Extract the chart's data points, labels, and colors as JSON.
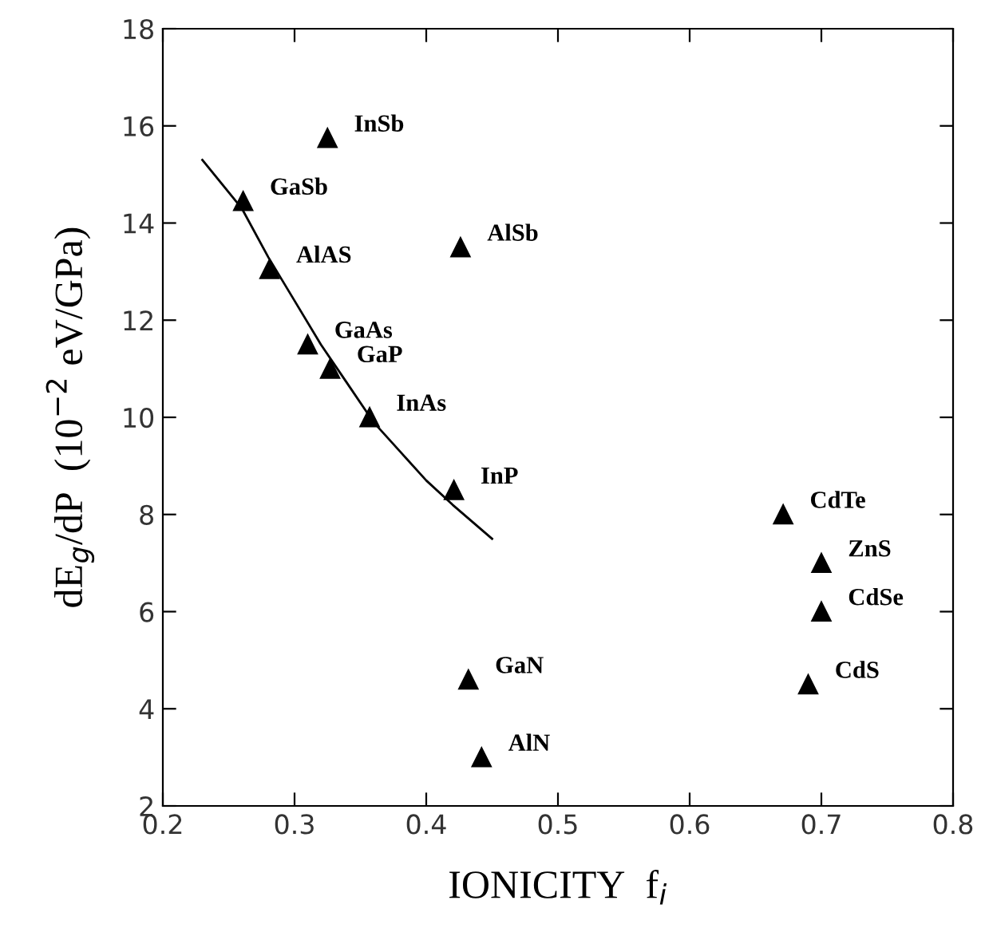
{
  "chart_data": {
    "type": "scatter",
    "xlabel": "IONICITY  f$_{i}$",
    "ylabel": "dE$_{g}$/dP  (10$^{−2}$ eV/GPa)",
    "xlim": [
      0.2,
      0.8
    ],
    "xticks": [
      0.2,
      0.3,
      0.4,
      0.5,
      0.6,
      0.7,
      0.8
    ],
    "ylim": [
      2,
      18
    ],
    "yticks": [
      2,
      4,
      6,
      8,
      10,
      12,
      14,
      16,
      18
    ],
    "grid": false,
    "legend": false,
    "series": [
      {
        "color": "#000000",
        "marker": "triangle",
        "x": [
          0.325,
          0.261,
          0.281,
          0.426,
          0.31,
          0.327,
          0.357,
          0.421,
          0.432,
          0.442,
          0.671,
          0.7,
          0.7,
          0.69
        ],
        "values": [
          15.75,
          14.45,
          13.05,
          13.5,
          11.5,
          11.0,
          10.0,
          8.5,
          4.6,
          3.0,
          8.0,
          7.0,
          6.0,
          4.5
        ]
      },
      {
        "type": "line",
        "color": "#000000",
        "marker": "none",
        "line_style": "solid",
        "x": [
          0.23,
          0.26,
          0.28,
          0.3,
          0.32,
          0.34,
          0.36,
          0.38,
          0.4,
          0.42,
          0.45
        ],
        "values": [
          15.3,
          14.3,
          13.3,
          12.4,
          11.5,
          10.7,
          9.9,
          9.3,
          8.7,
          8.2,
          7.5
        ]
      }
    ],
    "annotations": [
      {
        "text": "InSb",
        "x": 0.325,
        "y": 15.75
      },
      {
        "text": "GaSb",
        "x": 0.261,
        "y": 14.45
      },
      {
        "text": "AlAS",
        "x": 0.281,
        "y": 13.05
      },
      {
        "text": "AlSb",
        "x": 0.426,
        "y": 13.5
      },
      {
        "text": "GaAs",
        "x": 0.31,
        "y": 11.5
      },
      {
        "text": "GaP",
        "x": 0.327,
        "y": 11.0
      },
      {
        "text": "InAs",
        "x": 0.357,
        "y": 10.0
      },
      {
        "text": "InP",
        "x": 0.421,
        "y": 8.5
      },
      {
        "text": "GaN",
        "x": 0.432,
        "y": 4.6
      },
      {
        "text": "AlN",
        "x": 0.442,
        "y": 3.0
      },
      {
        "text": "CdTe",
        "x": 0.671,
        "y": 8.0
      },
      {
        "text": "ZnS",
        "x": 0.7,
        "y": 7.0
      },
      {
        "text": "CdSe",
        "x": 0.7,
        "y": 6.0
      },
      {
        "text": "CdS",
        "x": 0.69,
        "y": 4.5
      }
    ]
  }
}
